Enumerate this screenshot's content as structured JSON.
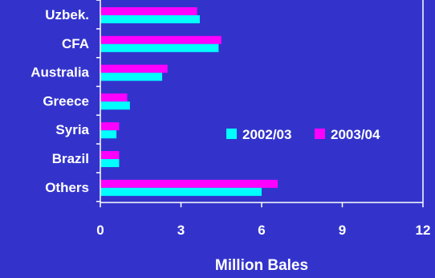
{
  "chart_data": {
    "type": "bar",
    "orientation": "horizontal",
    "categories": [
      "Uzbek.",
      "CFA",
      "Australia",
      "Greece",
      "Syria",
      "Brazil",
      "Others"
    ],
    "series": [
      {
        "name": "2002/03",
        "color": "#00FFFF",
        "values": [
          3.7,
          4.4,
          2.3,
          1.1,
          0.6,
          0.7,
          6.0
        ]
      },
      {
        "name": "2003/04",
        "color": "#FF00FF",
        "values": [
          3.6,
          4.5,
          2.5,
          1.0,
          0.7,
          0.7,
          6.6
        ]
      }
    ],
    "xlabel": "Million Bales",
    "xlim": [
      0,
      12
    ],
    "xticks": [
      0,
      3,
      6,
      9,
      12
    ],
    "grid": false,
    "legend_position": "right-middle",
    "colors": {
      "background": "#3333CC",
      "text": "#FFFFFF",
      "axis": "#FFFFFF"
    }
  }
}
